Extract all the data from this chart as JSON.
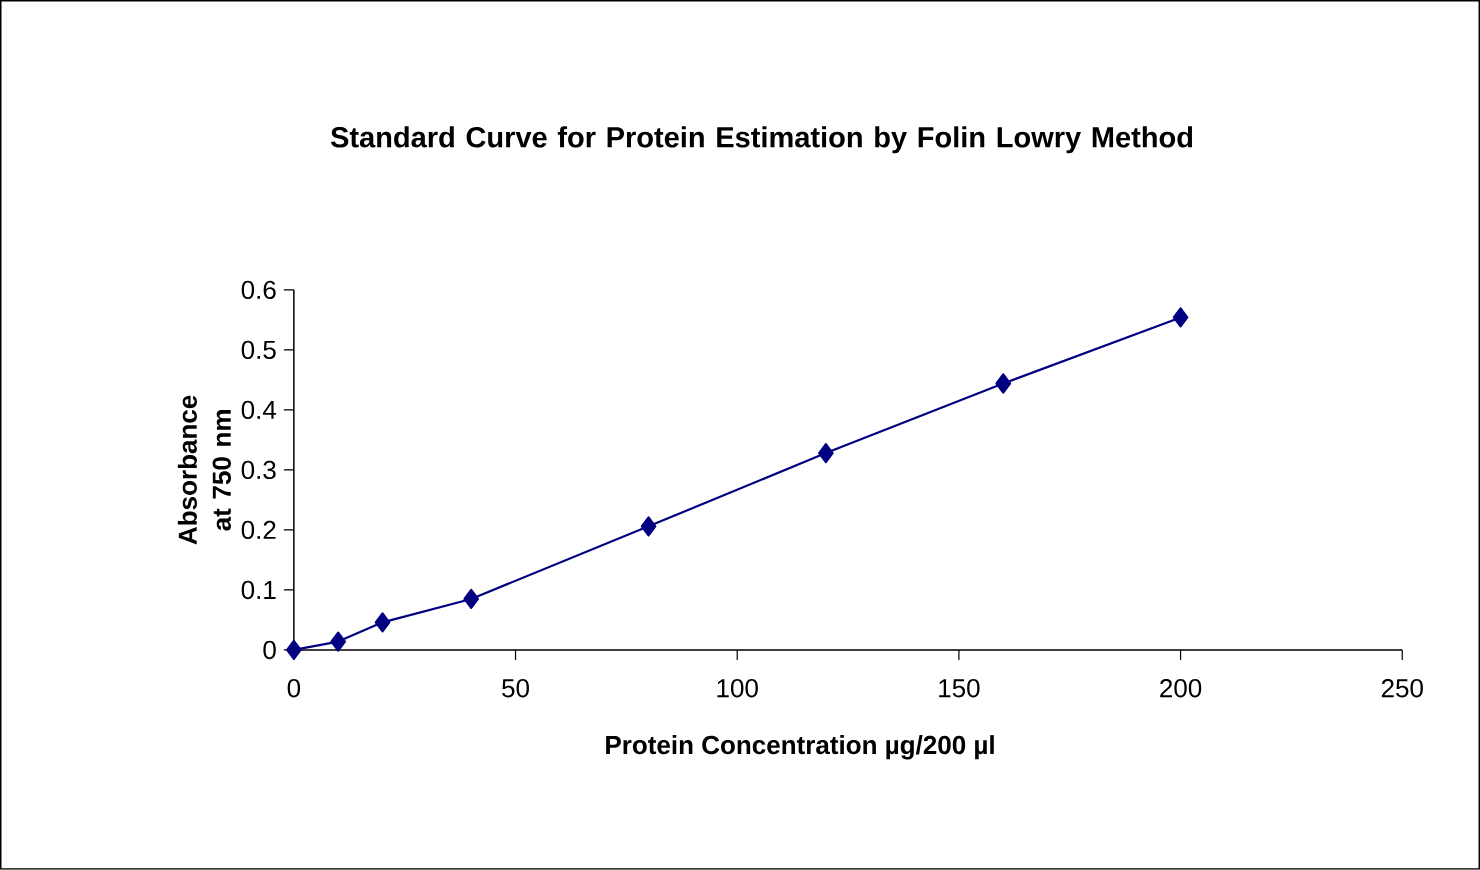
{
  "chart_data": {
    "type": "line",
    "title": "Standard Curve for Protein Estimation by Folin Lowry Method",
    "xlabel": "Protein Concentration µg/200 µl",
    "ylabel": "Absorbance at 750 nm",
    "x": [
      0,
      10,
      20,
      40,
      80,
      120,
      160,
      200
    ],
    "series": [
      {
        "color": "#000080",
        "values": [
          0,
          0.014,
          0.046,
          0.085,
          0.206,
          0.328,
          0.444,
          0.554
        ]
      }
    ],
    "xlim": [
      0,
      250
    ],
    "xticks": [
      0,
      50,
      100,
      150,
      200,
      250
    ],
    "ylim": [
      0,
      0.6
    ],
    "yticks": [
      0,
      0.1,
      0.2,
      0.3,
      0.4,
      0.5,
      0.6
    ],
    "grid": false,
    "marker": "diamond",
    "line_style": "solid"
  }
}
